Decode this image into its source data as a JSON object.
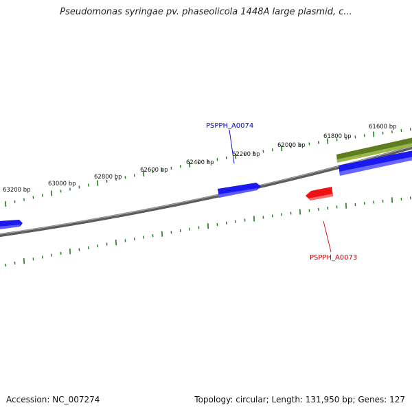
{
  "header": {
    "title": "Pseudomonas syringae pv. phaseolicola 1448A large plasmid, c..."
  },
  "footer": {
    "accession": "Accession: NC_007274",
    "summary": "Topology: circular; Length: 131,950 bp; Genes: 127"
  },
  "ruler": {
    "labels": [
      "63200 bp",
      "63000 bp",
      "62800 bp",
      "62600 bp",
      "62400 bp",
      "62200 bp",
      "62000 bp",
      "61800 bp",
      "61600 bp"
    ]
  },
  "genes": {
    "upper": {
      "label": "PSPPH_A0074",
      "color": "#0000cc"
    },
    "lower": {
      "label": "PSPPH_A0073",
      "color": "#cc0000"
    }
  },
  "colors": {
    "backbone": "#777777",
    "tick": "#1a7a1a",
    "forward_gene": "#1a1aee",
    "reverse_gene": "#ee1111",
    "olive_feature": "#6b8e23"
  }
}
